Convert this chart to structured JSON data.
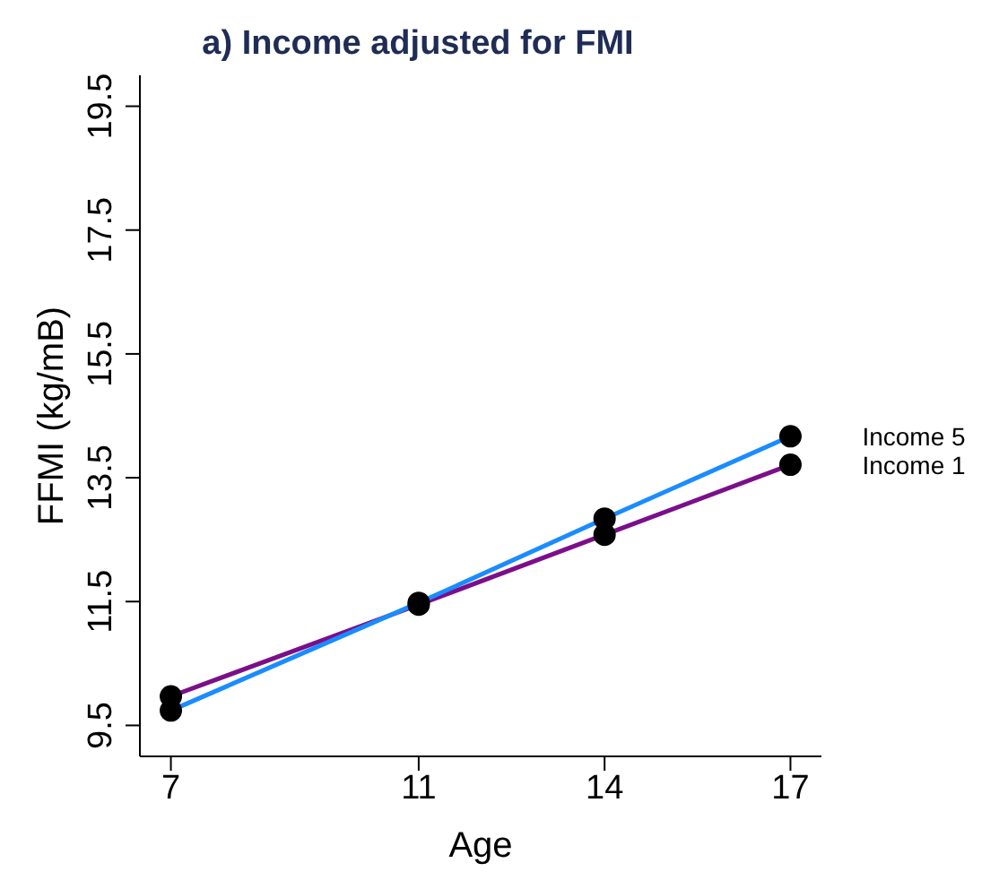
{
  "chart_data": {
    "type": "line",
    "title": "a) Income adjusted for FMI",
    "xlabel": "Age",
    "ylabel": "FFMI (kg/mB)",
    "x": [
      7,
      11,
      14,
      17
    ],
    "series": [
      {
        "name": "Income 1",
        "color": "#7b0f8a",
        "values": [
          9.97,
          11.45,
          12.58,
          13.71
        ]
      },
      {
        "name": "Income 5",
        "color": "#1a8cff",
        "values": [
          9.74,
          11.48,
          12.84,
          14.17
        ]
      }
    ],
    "xlim": [
      6.5,
      17.5
    ],
    "xticks": [
      7,
      11,
      14,
      17
    ],
    "ylim": [
      9,
      20
    ],
    "yticks": [
      9.5,
      11.5,
      13.5,
      15.5,
      17.5,
      19.5
    ],
    "marker": "circle",
    "line_style": "solid"
  }
}
